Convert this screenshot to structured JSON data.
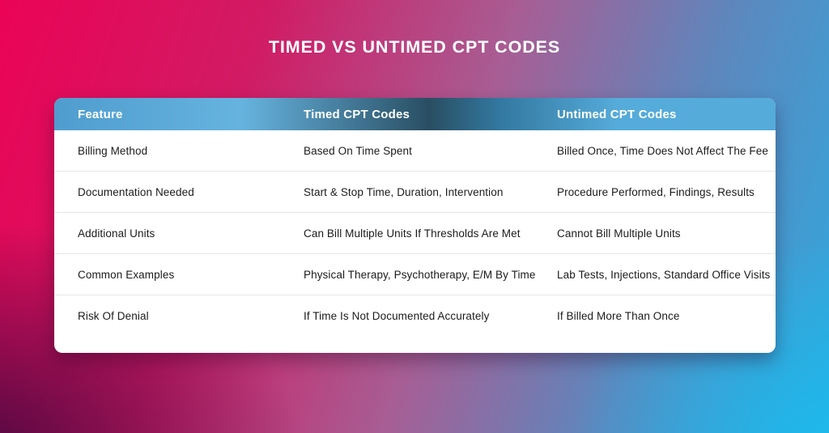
{
  "title": "TIMED VS UNTIMED CPT CODES",
  "chart_data": {
    "type": "table",
    "title": "TIMED VS UNTIMED CPT CODES",
    "columns": [
      "Feature",
      "Timed CPT Codes",
      "Untimed CPT Codes"
    ],
    "rows": [
      [
        "Billing Method",
        "Based On Time Spent",
        "Billed Once, Time Does Not Affect The Fee"
      ],
      [
        "Documentation Needed",
        "Start & Stop Time, Duration, Intervention",
        "Procedure Performed, Findings, Results"
      ],
      [
        "Additional Units",
        "Can Bill Multiple Units If Thresholds Are Met",
        "Cannot Bill Multiple Units"
      ],
      [
        "Common Examples",
        "Physical Therapy, Psychotherapy, E/M By Time",
        "Lab Tests, Injections, Standard Office Visits"
      ],
      [
        "Risk Of Denial",
        "If Time Is Not Documented Accurately",
        "If Billed More Than Once"
      ]
    ],
    "layout": {
      "header_style": "blue gradient band, white bold text",
      "grid": "horizontal row dividers only",
      "legend": "none"
    }
  },
  "colors": {
    "bg_pink": "#eb0356",
    "bg_magenta": "#d11b64",
    "bg_mauve": "#a75e94",
    "bg_blue": "#5d87bd",
    "bg_cyan": "#2fa9df",
    "bg_dark_corner": "#4a0840",
    "bg_cyan_corner": "#1cbaec",
    "header_blue_left": "#4f9dce",
    "header_blue_light": "#66b3df",
    "header_dark": "#294e62",
    "header_teal": "#3379a2",
    "header_blue_right": "#55abd9",
    "divider": "#e6e6e6",
    "card_bg": "#ffffff",
    "title_color": "#ffffff",
    "text_color": "#1b1b1b"
  }
}
